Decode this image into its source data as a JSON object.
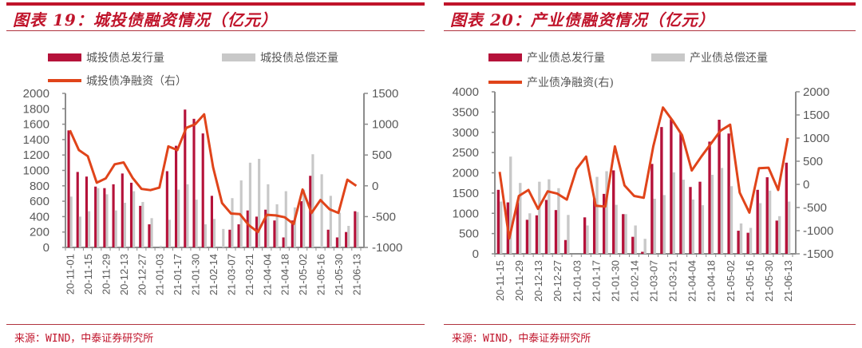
{
  "chart_data": [
    {
      "type": "bar+line",
      "title": "图表 19：城投债融资情况（亿元）",
      "legend": [
        "城投债总发行量",
        "城投债总偿还量",
        "城投债净融资（右）"
      ],
      "left_axis": {
        "ylim": [
          0,
          2000
        ],
        "ticks": [
          0,
          200,
          400,
          600,
          800,
          1000,
          1200,
          1400,
          1600,
          1800,
          2000
        ]
      },
      "right_axis": {
        "ylim": [
          -1000,
          1500
        ],
        "ticks": [
          -1000,
          -500,
          0,
          500,
          1000,
          1500
        ]
      },
      "tick_labels": [
        "20-11-01",
        "20-11-15",
        "20-11-29",
        "20-12-13",
        "20-12-27",
        "21-01-03",
        "21-01-17",
        "21-01-30",
        "21-02-14",
        "21-03-07",
        "21-03-21",
        "21-04-04",
        "21-04-18",
        "21-05-02",
        "21-05-16",
        "21-05-30",
        "21-06-13"
      ],
      "x_count": 33,
      "series": [
        {
          "name": "城投债总发行量",
          "axis": "left",
          "kind": "bar",
          "color": "#b5123a",
          "values": [
            1520,
            980,
            920,
            790,
            770,
            820,
            960,
            840,
            540,
            300,
            0,
            990,
            1320,
            1790,
            1670,
            1480,
            670,
            0,
            230,
            300,
            480,
            400,
            490,
            350,
            130,
            350,
            600,
            930,
            0,
            230,
            130,
            200,
            470
          ]
        },
        {
          "name": "城投债总偿还量",
          "axis": "left",
          "kind": "bar",
          "color": "#c8c8c8",
          "values": [
            660,
            400,
            470,
            770,
            690,
            480,
            580,
            730,
            590,
            380,
            20,
            360,
            750,
            820,
            620,
            300,
            370,
            240,
            640,
            870,
            1100,
            1150,
            820,
            560,
            730,
            520,
            750,
            1210,
            950,
            670,
            450,
            280,
            460
          ]
        },
        {
          "name": "城投债净融资（右）",
          "axis": "right",
          "kind": "line",
          "color": "#e0441a",
          "values": [
            900,
            580,
            480,
            50,
            120,
            350,
            380,
            130,
            -50,
            -70,
            -30,
            640,
            580,
            940,
            1000,
            1160,
            300,
            -280,
            -450,
            -460,
            -640,
            -750,
            -470,
            -480,
            -510,
            -620,
            -60,
            -440,
            -230,
            -380,
            -440,
            100,
            0
          ]
        }
      ]
    },
    {
      "type": "bar+line",
      "title": "图表 20：产业债融资情况（亿元）",
      "legend": [
        "产业债总发行量",
        "产业债总偿还量",
        "产业债净融资(右)"
      ],
      "left_axis": {
        "ylim": [
          0,
          4000
        ],
        "ticks": [
          0,
          500,
          1000,
          1500,
          2000,
          2500,
          3000,
          3500,
          4000
        ]
      },
      "right_axis": {
        "ylim": [
          -1500,
          2000
        ],
        "ticks": [
          -1500,
          -1000,
          -500,
          0,
          500,
          1000,
          1500,
          2000
        ]
      },
      "tick_labels": [
        "20-11-15",
        "20-11-29",
        "20-12-13",
        "20-12-27",
        "21-01-03",
        "21-01-17",
        "21-01-30",
        "21-02-14",
        "21-03-07",
        "21-03-21",
        "21-04-04",
        "21-04-18",
        "21-05-02",
        "21-05-16",
        "21-05-30",
        "21-06-13"
      ],
      "x_count": 31,
      "series": [
        {
          "name": "产业债总发行量",
          "axis": "left",
          "kind": "bar",
          "color": "#b5123a",
          "values": [
            1580,
            1270,
            1270,
            840,
            950,
            1330,
            1080,
            340,
            0,
            900,
            1370,
            1480,
            2060,
            980,
            420,
            50,
            2220,
            3130,
            3320,
            2980,
            1650,
            1780,
            2770,
            3310,
            2970,
            570,
            520,
            1580,
            1890,
            820,
            2250
          ]
        },
        {
          "name": "产业债总偿还量",
          "axis": "left",
          "kind": "bar",
          "color": "#c8c8c8",
          "values": [
            1290,
            2400,
            1750,
            1000,
            1780,
            1840,
            1620,
            960,
            0,
            700,
            1900,
            2040,
            1210,
            980,
            700,
            370,
            1360,
            1450,
            2010,
            1830,
            1340,
            1200,
            1950,
            2120,
            1670,
            750,
            640,
            1250,
            1560,
            930,
            1290
          ]
        },
        {
          "name": "产业债净融资(右)",
          "axis": "right",
          "kind": "line",
          "color": "#e0441a",
          "values": [
            270,
            -1170,
            -250,
            -120,
            -530,
            -150,
            -200,
            -330,
            330,
            600,
            -460,
            -480,
            820,
            -20,
            -250,
            -290,
            820,
            1660,
            1380,
            1060,
            300,
            600,
            880,
            1160,
            1290,
            -180,
            -610,
            350,
            360,
            -120,
            1000
          ]
        }
      ]
    }
  ],
  "left_panel": {
    "title": "图表 19：城投债融资情况（亿元）",
    "legend_issue": "城投债总发行量",
    "legend_repay": "城投债总偿还量",
    "legend_net": "城投债净融资（右）",
    "source": "来源：WIND，中泰证券研究所"
  },
  "right_panel": {
    "title": "图表 20：产业债融资情况（亿元）",
    "legend_issue": "产业债总发行量",
    "legend_repay": "产业债总偿还量",
    "legend_net": "产业债净融资(右)",
    "source": "来源：WIND，中泰证券研究所"
  },
  "colors": {
    "brand_red": "#c0142b",
    "bar_issue": "#b5123a",
    "bar_repay": "#c8c8c8",
    "net_line": "#e0441a"
  }
}
